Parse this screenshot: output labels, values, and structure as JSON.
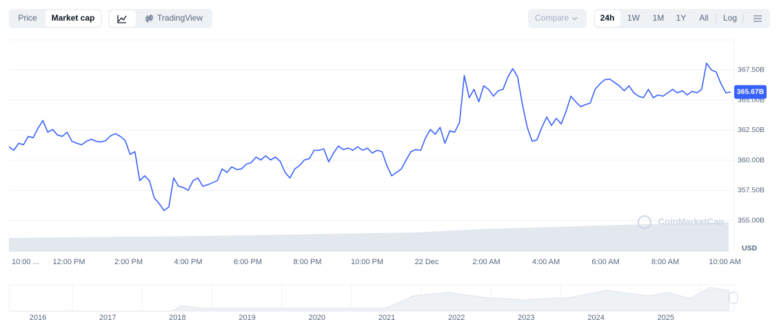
{
  "toolbar": {
    "tabs": [
      "Price",
      "Market cap"
    ],
    "views": [
      "TradingView"
    ],
    "compare": "Compare",
    "ranges": [
      "24h",
      "1W",
      "1M",
      "1Y",
      "All"
    ],
    "log": "Log"
  },
  "chart_data": {
    "type": "line",
    "color": "#3861fb",
    "values": [
      361.12,
      360.83,
      361.41,
      361.29,
      361.98,
      361.87,
      362.67,
      363.3,
      362.33,
      362.56,
      362.1,
      361.98,
      362.33,
      361.58,
      361.41,
      361.29,
      361.58,
      361.75,
      361.58,
      361.52,
      361.64,
      362.04,
      362.21,
      361.98,
      361.64,
      360.49,
      360.72,
      358.3,
      358.71,
      358.3,
      356.87,
      356.41,
      355.83,
      356.12,
      358.53,
      357.85,
      357.73,
      357.5,
      358.3,
      358.53,
      357.85,
      357.96,
      358.13,
      358.3,
      359.28,
      358.99,
      359.45,
      359.22,
      359.28,
      359.68,
      359.8,
      360.26,
      360.03,
      360.37,
      360.03,
      360.26,
      359.91,
      358.99,
      358.53,
      359.28,
      359.57,
      360.03,
      360.14,
      360.83,
      360.83,
      360.95,
      359.86,
      360.6,
      361.18,
      360.89,
      361.01,
      360.83,
      361.12,
      360.83,
      361.01,
      360.6,
      360.83,
      360.72,
      359.57,
      358.71,
      358.99,
      359.28,
      360.03,
      360.72,
      360.89,
      360.83,
      361.87,
      362.56,
      362.16,
      362.73,
      361.41,
      362.44,
      362.33,
      363.13,
      367.04,
      365.2,
      365.89,
      364.86,
      366.18,
      365.89,
      365.32,
      365.78,
      365.89,
      366.93,
      367.61,
      366.93,
      364.63,
      362.73,
      361.58,
      361.7,
      362.73,
      363.59,
      362.9,
      363.48,
      363.02,
      364.05,
      365.32,
      364.86,
      364.45,
      364.63,
      364.74,
      365.89,
      366.35,
      366.7,
      366.75,
      366.47,
      366.18,
      365.78,
      366.18,
      365.6,
      365.32,
      365.2,
      365.89,
      365.2,
      365.43,
      365.32,
      365.6,
      365.89,
      365.6,
      365.78,
      365.43,
      365.72,
      365.6,
      365.89,
      368.07,
      367.5,
      367.33,
      366.35,
      365.6,
      365.67
    ],
    "current": {
      "value": 365.67,
      "label": "365.67B"
    },
    "ylim": [
      352.4,
      370.0
    ],
    "yticks": [
      {
        "value": 355,
        "label": "355.00B"
      },
      {
        "value": 357.5,
        "label": "357.50B"
      },
      {
        "value": 360,
        "label": "360.00B"
      },
      {
        "value": 362.5,
        "label": "362.50B"
      },
      {
        "value": 365,
        "label": "365.00B"
      },
      {
        "value": 367.5,
        "label": "367.50B"
      }
    ],
    "x_labels": [
      "10:00 ...",
      "12:00 PM",
      "2:00 PM",
      "4:00 PM",
      "6:00 PM",
      "8:00 PM",
      "10:00 PM",
      "22 Dec",
      "2:00 AM",
      "4:00 AM",
      "6:00 AM",
      "8:00 AM",
      "10:00 AM"
    ],
    "y_unit": "USD",
    "grid": true,
    "watermark": "CoinMarketCap"
  },
  "navigator": {
    "years": [
      "2016",
      "2017",
      "2018",
      "2019",
      "2020",
      "2021",
      "2022",
      "2023",
      "2024",
      "2025"
    ]
  }
}
